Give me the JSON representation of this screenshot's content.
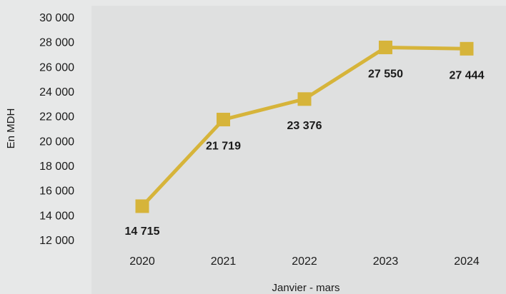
{
  "chart_data": {
    "type": "line",
    "categories": [
      "2020",
      "2021",
      "2022",
      "2023",
      "2024"
    ],
    "series": [
      {
        "values": [
          14715,
          21719,
          23376,
          27550,
          27444
        ],
        "labels": [
          "14 715",
          "21 719",
          "23 376",
          "27 550",
          "27 444"
        ],
        "color": "#d6b43a"
      }
    ],
    "ylim": [
      12000,
      30000
    ],
    "yticks": [
      12000,
      14000,
      16000,
      18000,
      20000,
      22000,
      24000,
      26000,
      28000,
      30000
    ],
    "ytick_labels": [
      "12 000",
      "14 000",
      "16 000",
      "18 000",
      "20 000",
      "22 000",
      "24 000",
      "26 000",
      "28 000",
      "30 000"
    ],
    "xlabel": "Janvier - mars",
    "ylabel": "En MDH",
    "grid": false,
    "marker": "square",
    "colors": {
      "background": "#e7e8e8",
      "plot_area": "#dfe0e0",
      "line": "#d6b43a"
    }
  }
}
